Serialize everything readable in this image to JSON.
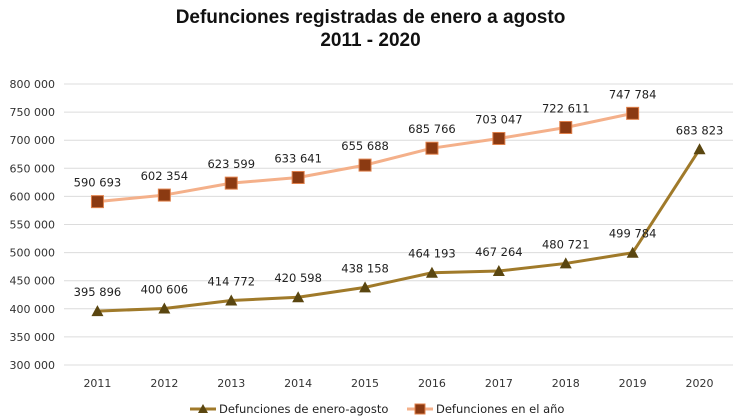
{
  "chart_data": {
    "type": "line",
    "title": "Defunciones registradas de enero a agosto",
    "subtitle": "2011 - 2020",
    "xlabel": "",
    "ylabel": "",
    "categories": [
      "2011",
      "2012",
      "2013",
      "2014",
      "2015",
      "2016",
      "2017",
      "2018",
      "2019",
      "2020"
    ],
    "ylim": [
      300000,
      800000
    ],
    "ytick_step": 50000,
    "yticks": [
      "300 000",
      "350 000",
      "400 000",
      "450 000",
      "500 000",
      "550 000",
      "600 000",
      "650 000",
      "700 000",
      "750 000",
      "800 000"
    ],
    "grid": true,
    "legend_position": "bottom",
    "series": [
      {
        "name": "Defunciones de enero-agosto",
        "marker": "triangle",
        "line_color": "#a07a2a",
        "marker_color": "#5a4610",
        "values": [
          395896,
          400606,
          414772,
          420598,
          438158,
          464193,
          467264,
          480721,
          499784,
          683823
        ],
        "labels": [
          "395 896",
          "400 606",
          "414 772",
          "420 598",
          "438 158",
          "464 193",
          "467 264",
          "480 721",
          "499 784",
          "683 823"
        ]
      },
      {
        "name": "Defunciones en el año",
        "marker": "square",
        "line_color": "#f4b08a",
        "marker_color": "#8b3a12",
        "values": [
          590693,
          602354,
          623599,
          633641,
          655688,
          685766,
          703047,
          722611,
          747784,
          null
        ],
        "labels": [
          "590 693",
          "602 354",
          "623 599",
          "633 641",
          "655 688",
          "685 766",
          "703 047",
          "722 611",
          "747 784",
          ""
        ]
      }
    ]
  }
}
